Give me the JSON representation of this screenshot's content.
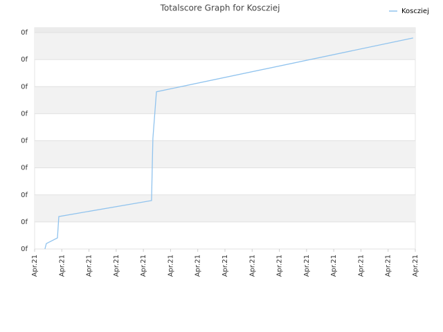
{
  "chart_data": {
    "type": "line",
    "title": "Totalscore Graph for Koscziej",
    "series": [
      {
        "name": "Koscziej",
        "color": "#90c3ee",
        "x": [
          0.38,
          0.43,
          0.84,
          0.89,
          4.3,
          4.33,
          4.35,
          4.48,
          13.92
        ],
        "values": [
          0,
          0.2,
          0.41,
          1.2,
          1.79,
          3.2,
          4.09,
          5.81,
          7.8
        ]
      }
    ],
    "xlim": [
      0,
      14
    ],
    "xticks": [
      {
        "value": 0,
        "label": "Apr.21"
      },
      {
        "value": 1,
        "label": "Apr.21"
      },
      {
        "value": 2,
        "label": "Apr.21"
      },
      {
        "value": 3,
        "label": "Apr.21"
      },
      {
        "value": 4,
        "label": "Apr.21"
      },
      {
        "value": 5,
        "label": "Apr.21"
      },
      {
        "value": 6,
        "label": "Apr.21"
      },
      {
        "value": 7,
        "label": "Apr.21"
      },
      {
        "value": 8,
        "label": "Apr.21"
      },
      {
        "value": 9,
        "label": "Apr.21"
      },
      {
        "value": 10,
        "label": "Apr.21"
      },
      {
        "value": 11,
        "label": "Apr.21"
      },
      {
        "value": 12,
        "label": "Apr.21"
      },
      {
        "value": 13,
        "label": "Apr.21"
      },
      {
        "value": 14,
        "label": "Apr.21"
      }
    ],
    "ylim": [
      0,
      8.18
    ],
    "yticks": [
      {
        "value": 0,
        "label": "0f"
      },
      {
        "value": 1,
        "label": "0f"
      },
      {
        "value": 2,
        "label": "0f"
      },
      {
        "value": 3,
        "label": "0f"
      },
      {
        "value": 4,
        "label": "0f"
      },
      {
        "value": 5,
        "label": "0f"
      },
      {
        "value": 6,
        "label": "0f"
      },
      {
        "value": 7,
        "label": "0f"
      },
      {
        "value": 8,
        "label": "0f"
      }
    ],
    "grid": true,
    "legend": "top-right"
  }
}
